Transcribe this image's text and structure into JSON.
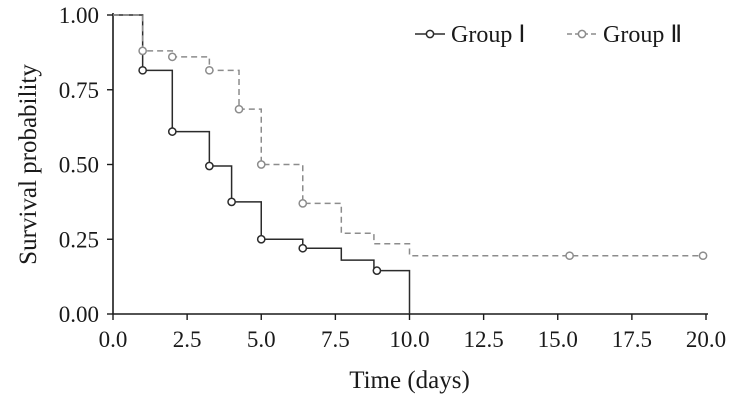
{
  "chart_data": {
    "type": "line",
    "subtype": "kaplan-meier-step",
    "title": "",
    "xlabel": "Time (days)",
    "ylabel": "Survival probability",
    "xlim": [
      0,
      20
    ],
    "ylim": [
      0,
      1
    ],
    "x_ticks": [
      0,
      2.5,
      5,
      7.5,
      10,
      12.5,
      15,
      17.5,
      20
    ],
    "x_tick_labels": [
      "0.0",
      "2.5",
      "5.0",
      "7.5",
      "10.0",
      "12.5",
      "15.0",
      "17.5",
      "20.0"
    ],
    "y_ticks": [
      0,
      0.25,
      0.5,
      0.75,
      1
    ],
    "y_tick_labels": [
      "0.00",
      "0.25",
      "0.50",
      "0.75",
      "1.00"
    ],
    "grid": false,
    "legend_position": "top-right",
    "series": [
      {
        "name": "Group Ⅰ",
        "color": "#2b2b2b",
        "line_style": "solid",
        "steps": [
          {
            "x": 0,
            "y": 1.0
          },
          {
            "x": 1.0,
            "y": 0.815
          },
          {
            "x": 2.0,
            "y": 0.61
          },
          {
            "x": 3.25,
            "y": 0.495
          },
          {
            "x": 4.0,
            "y": 0.375
          },
          {
            "x": 5.0,
            "y": 0.25
          },
          {
            "x": 6.4,
            "y": 0.22
          },
          {
            "x": 7.7,
            "y": 0.18
          },
          {
            "x": 8.8,
            "y": 0.145
          },
          {
            "x": 10.0,
            "y": 0.0
          }
        ],
        "end_x": 10.0,
        "censor_marks": [
          {
            "x": 1.0,
            "y": 0.815
          },
          {
            "x": 2.0,
            "y": 0.61
          },
          {
            "x": 3.25,
            "y": 0.495
          },
          {
            "x": 4.0,
            "y": 0.375
          },
          {
            "x": 5.0,
            "y": 0.25
          },
          {
            "x": 6.4,
            "y": 0.22
          },
          {
            "x": 8.9,
            "y": 0.145
          }
        ]
      },
      {
        "name": "Group Ⅱ",
        "color": "#8c8c8c",
        "line_style": "dashed",
        "steps": [
          {
            "x": 0,
            "y": 1.0
          },
          {
            "x": 1.0,
            "y": 0.88
          },
          {
            "x": 2.0,
            "y": 0.86
          },
          {
            "x": 3.25,
            "y": 0.815
          },
          {
            "x": 4.25,
            "y": 0.685
          },
          {
            "x": 5.0,
            "y": 0.5
          },
          {
            "x": 6.4,
            "y": 0.37
          },
          {
            "x": 7.7,
            "y": 0.27
          },
          {
            "x": 8.8,
            "y": 0.235
          },
          {
            "x": 10.0,
            "y": 0.195
          }
        ],
        "end_x": 20.0,
        "censor_marks": [
          {
            "x": 1.0,
            "y": 0.88
          },
          {
            "x": 2.0,
            "y": 0.86
          },
          {
            "x": 3.25,
            "y": 0.815
          },
          {
            "x": 4.25,
            "y": 0.685
          },
          {
            "x": 5.0,
            "y": 0.5
          },
          {
            "x": 6.4,
            "y": 0.37
          },
          {
            "x": 15.4,
            "y": 0.195
          },
          {
            "x": 19.9,
            "y": 0.195
          }
        ]
      }
    ]
  }
}
